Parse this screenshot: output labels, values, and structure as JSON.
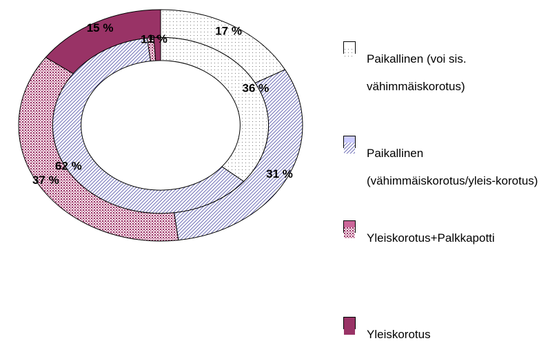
{
  "chart_data": {
    "type": "donut",
    "categories": [
      "Paikallinen (voi sis. vähimmäiskorotus)",
      "Paikallinen (vähimmäiskorotus/yleis-korotus)",
      "Yleiskorotus+Palkkapotti",
      "Yleiskorotus"
    ],
    "colors": [
      "#ffffff",
      "#ccccff",
      "#cc6699",
      "#993366"
    ],
    "series": [
      {
        "values": [
          17,
          31,
          37,
          15
        ],
        "value_labels": [
          "17 %",
          "31 %",
          "37 %",
          "15 %"
        ]
      },
      {
        "values": [
          36,
          62,
          1,
          1
        ],
        "value_labels": [
          "36 %",
          "62 %",
          "1 %",
          "1 %"
        ]
      }
    ],
    "legend": "right"
  }
}
